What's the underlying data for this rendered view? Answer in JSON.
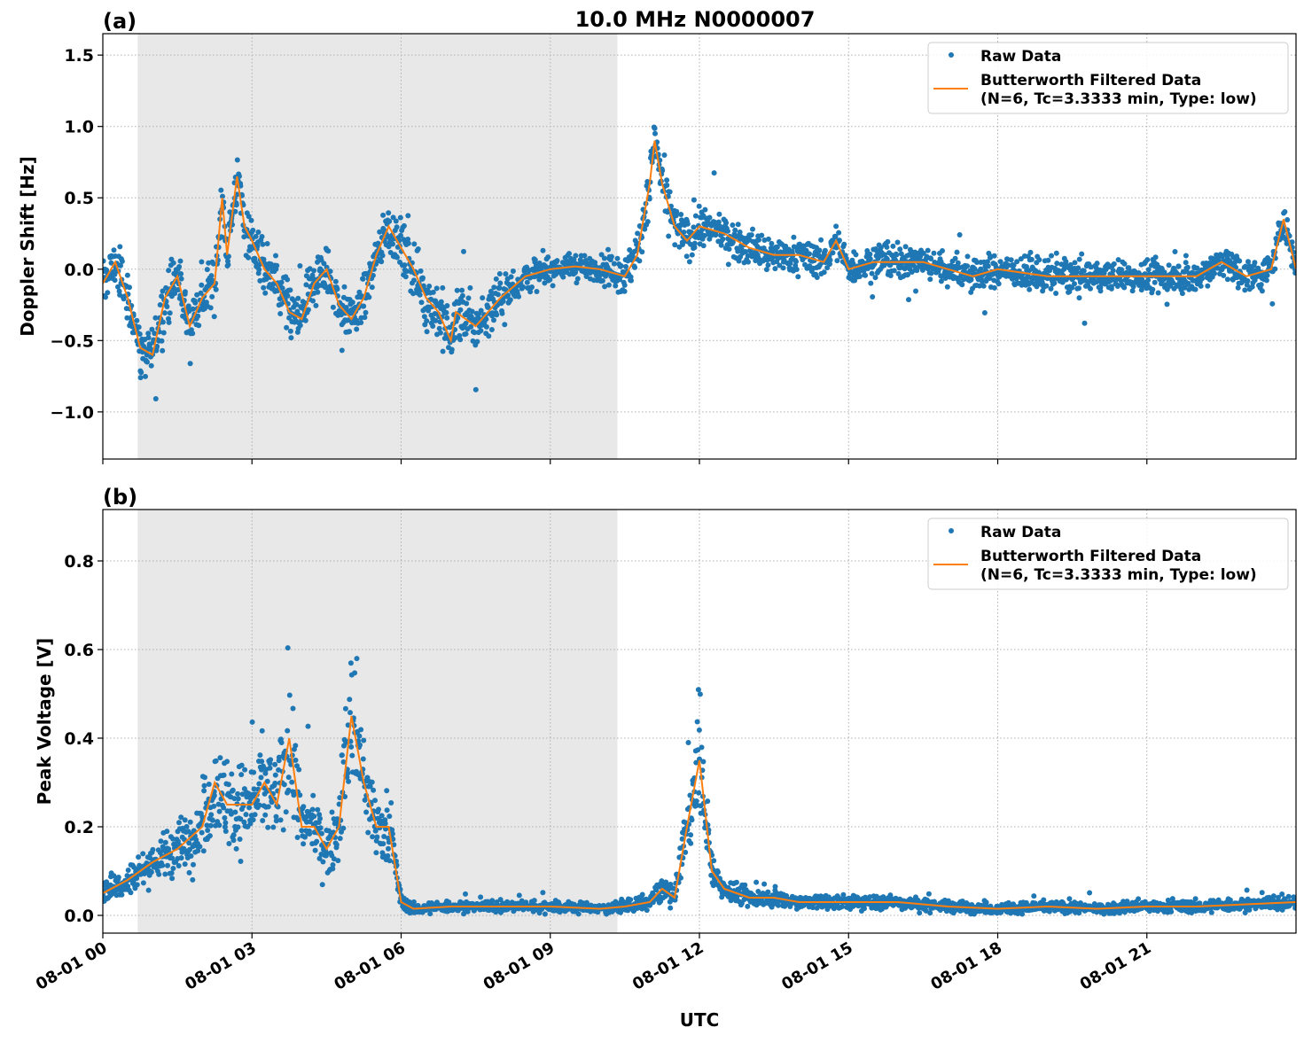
{
  "title": "10.0 MHz N0000007",
  "xlabel": "UTC",
  "colors": {
    "raw": "#1f77b4",
    "filtered": "#ff7f0e",
    "shade": "#e8e8e8",
    "grid": "#b0b0b0"
  },
  "chart_data": [
    {
      "type": "scatter",
      "panel_label": "(a)",
      "ylabel": "Doppler Shift [Hz]",
      "xlim_hours": [
        0,
        24
      ],
      "ylim": [
        -1.33,
        1.65
      ],
      "yticks": [
        -1.0,
        -0.5,
        0.0,
        0.5,
        1.0,
        1.5
      ],
      "ytick_labels": [
        "−1.0",
        "−0.5",
        "0.0",
        "0.5",
        "1.0",
        "1.5"
      ],
      "xticks_hours": [
        0,
        3,
        6,
        9,
        12,
        15,
        18,
        21
      ],
      "xtick_labels": [
        "08-01 00",
        "08-01 03",
        "08-01 06",
        "08-01 09",
        "08-01 12",
        "08-01 15",
        "08-01 18",
        "08-01 21"
      ],
      "shaded_hours": [
        0.7,
        10.35
      ],
      "grid": true,
      "legend_placement": "upper right",
      "legend": [
        "Raw Data",
        "Butterworth Filtered Data",
        "(N=6, Tc=3.3333 min, Type: low)"
      ],
      "filtered": {
        "hours": [
          0,
          0.25,
          0.5,
          0.75,
          1.0,
          1.25,
          1.5,
          1.75,
          2.0,
          2.25,
          2.4,
          2.5,
          2.7,
          2.85,
          3.0,
          3.25,
          3.5,
          3.75,
          4.0,
          4.25,
          4.5,
          4.75,
          5.0,
          5.25,
          5.5,
          5.75,
          6.0,
          6.25,
          6.5,
          6.75,
          7.0,
          7.1,
          7.5,
          8.0,
          8.5,
          9.0,
          9.5,
          10.0,
          10.5,
          10.75,
          11.0,
          11.1,
          11.25,
          11.5,
          11.75,
          12.0,
          12.5,
          13.0,
          13.5,
          14.0,
          14.5,
          14.75,
          15.0,
          15.5,
          16.0,
          16.5,
          17.0,
          17.5,
          18.0,
          19.0,
          20.0,
          21.0,
          22.0,
          22.5,
          23.0,
          23.5,
          23.75,
          24.0
        ],
        "values": [
          -0.1,
          0.05,
          -0.2,
          -0.55,
          -0.6,
          -0.2,
          -0.05,
          -0.4,
          -0.2,
          -0.1,
          0.5,
          0.1,
          0.65,
          0.3,
          0.2,
          0.0,
          -0.1,
          -0.3,
          -0.35,
          -0.1,
          0.0,
          -0.25,
          -0.35,
          -0.2,
          0.1,
          0.3,
          0.15,
          0.0,
          -0.2,
          -0.3,
          -0.5,
          -0.3,
          -0.4,
          -0.2,
          -0.05,
          0.0,
          0.02,
          0.0,
          -0.05,
          0.1,
          0.6,
          0.9,
          0.6,
          0.3,
          0.2,
          0.3,
          0.25,
          0.15,
          0.1,
          0.1,
          0.05,
          0.2,
          0.0,
          0.05,
          0.05,
          0.05,
          0.0,
          -0.05,
          0.0,
          -0.05,
          -0.05,
          -0.05,
          -0.05,
          0.05,
          -0.05,
          0.0,
          0.35,
          0.0
        ]
      },
      "raw_spread": {
        "hours": [
          0,
          1,
          2,
          3,
          4,
          5,
          6,
          7,
          8,
          9,
          10,
          11,
          12,
          14,
          16,
          18,
          20,
          22,
          24
        ],
        "values": [
          0.25,
          0.3,
          0.3,
          0.3,
          0.3,
          0.25,
          0.3,
          0.35,
          0.25,
          0.15,
          0.15,
          0.3,
          0.22,
          0.18,
          0.18,
          0.18,
          0.18,
          0.18,
          0.2
        ]
      }
    },
    {
      "type": "scatter",
      "panel_label": "(b)",
      "ylabel": "Peak Voltage [V]",
      "xlim_hours": [
        0,
        24
      ],
      "ylim": [
        -0.04,
        0.916
      ],
      "yticks": [
        0.0,
        0.2,
        0.4,
        0.6,
        0.8
      ],
      "ytick_labels": [
        "0.0",
        "0.2",
        "0.4",
        "0.6",
        "0.8"
      ],
      "xticks_hours": [
        0,
        3,
        6,
        9,
        12,
        15,
        18,
        21
      ],
      "xtick_labels": [
        "08-01 00",
        "08-01 03",
        "08-01 06",
        "08-01 09",
        "08-01 12",
        "08-01 15",
        "08-01 18",
        "08-01 21"
      ],
      "shaded_hours": [
        0.7,
        10.35
      ],
      "grid": true,
      "legend_placement": "upper right",
      "legend": [
        "Raw Data",
        "Butterworth Filtered Data",
        "(N=6, Tc=3.3333 min, Type: low)"
      ],
      "filtered": {
        "hours": [
          0,
          0.5,
          1.0,
          1.5,
          2.0,
          2.25,
          2.5,
          3.0,
          3.25,
          3.5,
          3.75,
          4.0,
          4.25,
          4.5,
          4.75,
          5.0,
          5.25,
          5.5,
          5.75,
          6.0,
          6.25,
          7,
          8,
          9,
          10,
          10.5,
          11,
          11.25,
          11.5,
          11.75,
          12.0,
          12.25,
          12.5,
          13,
          13.5,
          14,
          15,
          16,
          17,
          18,
          19,
          20,
          21,
          22,
          23,
          24
        ],
        "values": [
          0.05,
          0.08,
          0.12,
          0.15,
          0.2,
          0.3,
          0.25,
          0.25,
          0.3,
          0.25,
          0.4,
          0.2,
          0.2,
          0.15,
          0.2,
          0.45,
          0.3,
          0.2,
          0.2,
          0.03,
          0.015,
          0.02,
          0.02,
          0.02,
          0.015,
          0.02,
          0.03,
          0.06,
          0.04,
          0.2,
          0.35,
          0.1,
          0.06,
          0.04,
          0.04,
          0.03,
          0.03,
          0.03,
          0.02,
          0.015,
          0.02,
          0.015,
          0.02,
          0.02,
          0.025,
          0.03
        ]
      }
    }
  ]
}
